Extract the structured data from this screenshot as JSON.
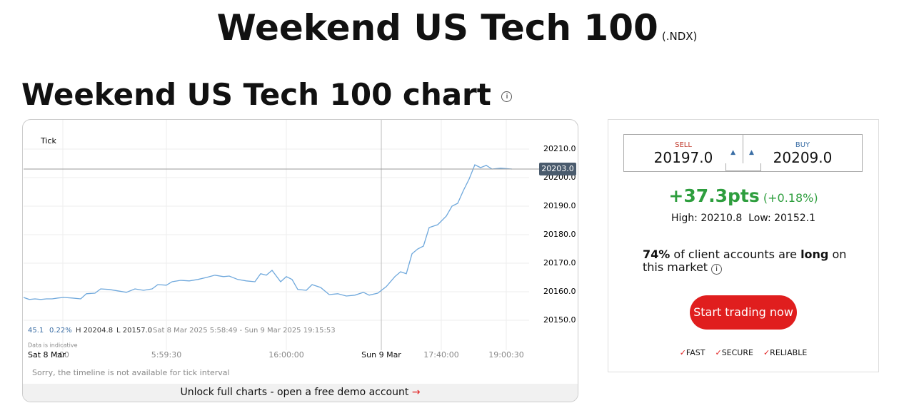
{
  "header": {
    "title": "Weekend US Tech 100",
    "symbol": "(.NDX)"
  },
  "chart_heading": "Weekend US Tech 100 chart",
  "chart_data": {
    "type": "line",
    "interval_label": "Tick",
    "x": [
      0,
      2,
      4,
      6,
      8,
      10,
      12,
      14,
      17,
      20,
      22,
      25,
      27,
      30,
      33,
      36,
      39,
      42,
      45,
      47,
      50,
      52,
      55,
      58,
      61,
      64,
      67,
      70,
      72,
      75,
      78,
      81,
      83,
      85,
      87,
      90,
      92,
      94,
      96,
      99,
      101,
      104,
      107,
      110,
      113,
      116,
      119,
      121,
      124,
      127,
      130,
      132,
      134,
      136,
      138,
      140,
      142,
      145,
      148,
      150,
      152,
      154,
      156,
      158,
      160,
      162,
      164,
      167,
      171
    ],
    "series": [
      {
        "name": "Price",
        "color": "#6fa8dc",
        "values": [
          20158,
          20157.3,
          20157.5,
          20157.3,
          20157.5,
          20157.5,
          20157.8,
          20158,
          20157.8,
          20157.5,
          20159.3,
          20159.5,
          20161,
          20160.8,
          20160.3,
          20159.8,
          20161,
          20160.5,
          20161,
          20162.5,
          20162.3,
          20163.5,
          20164,
          20163.8,
          20164.3,
          20165,
          20165.8,
          20165.3,
          20165.5,
          20164.3,
          20163.8,
          20163.5,
          20166.3,
          20165.8,
          20167.5,
          20163.5,
          20165.3,
          20164.3,
          20160.8,
          20160.5,
          20162.5,
          20161.5,
          20159,
          20159.3,
          20158.5,
          20158.8,
          20159.8,
          20158.8,
          20159.5,
          20161.8,
          20165.3,
          20167,
          20166.3,
          20173.3,
          20175,
          20176,
          20182.5,
          20183.5,
          20186.5,
          20190,
          20191,
          20195.5,
          20199.5,
          20204.5,
          20203.5,
          20204.3,
          20203,
          20203.3,
          20203
        ]
      }
    ],
    "xlim": [
      0,
      177
    ],
    "ylim": [
      20142,
      20218
    ],
    "yticks": [
      {
        "value": 20150,
        "label": "20150.0"
      },
      {
        "value": 20160,
        "label": "20160.0"
      },
      {
        "value": 20170,
        "label": "20170.0"
      },
      {
        "value": 20180,
        "label": "20180.0"
      },
      {
        "value": 20190,
        "label": "20190.0"
      },
      {
        "value": 20200,
        "label": "20200.0"
      },
      {
        "value": 20210,
        "label": "20210.0"
      }
    ],
    "xticks": [
      {
        "value": 13.75,
        "label": ":00"
      },
      {
        "value": 50,
        "label": "5:59:30"
      },
      {
        "value": 92,
        "label": "16:00:00"
      },
      {
        "value": 125.25,
        "label": "Sun 9 Mar"
      },
      {
        "value": 146.25,
        "label": "17:40:00"
      },
      {
        "value": 169,
        "label": "19:00:30"
      }
    ],
    "x_start_label": "Sat 8 Mar",
    "current": {
      "value": 20203,
      "label": "20203.0"
    },
    "stats": [
      "45.1",
      "0.22%",
      "H 20204.8",
      "L 20157.0",
      "Sat 8 Mar 2025 5:58:49 - Sun 9 Mar 2025 19:15:53"
    ],
    "note": "Data is indicative",
    "timeline_note": "Sorry, the timeline is not available for tick interval",
    "grid": true
  },
  "unlock": "Unlock full charts - open a free demo account",
  "deal": {
    "sell_label": "SELL",
    "sell": "20197.0",
    "buy_label": "BUY",
    "buy": "20209.0",
    "change": "+37.3pts",
    "change_pct": "(+0.18%)",
    "high": "High: 20210.8",
    "low": "Low: 20152.1",
    "sentiment": [
      "74%",
      "of client accounts are",
      "long",
      "on this market"
    ],
    "button": "Start trading now",
    "badges": [
      "FAST",
      "SECURE",
      "RELIABLE"
    ]
  }
}
